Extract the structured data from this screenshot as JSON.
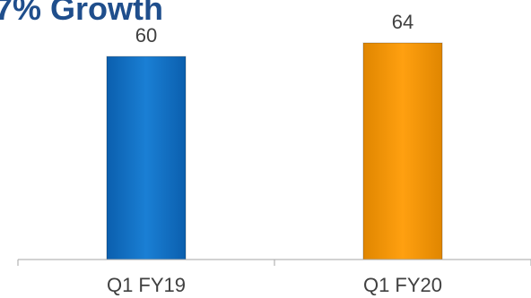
{
  "title": "7% Growth",
  "chart_data": {
    "type": "bar",
    "title": "7% Growth",
    "categories": [
      "Q1 FY19",
      "Q1 FY20"
    ],
    "values": [
      60,
      64
    ],
    "xlabel": "",
    "ylabel": "",
    "ylim": [
      0,
      64
    ],
    "grid": false,
    "colors": [
      "#1a7fd4",
      "#ffa010"
    ]
  }
}
